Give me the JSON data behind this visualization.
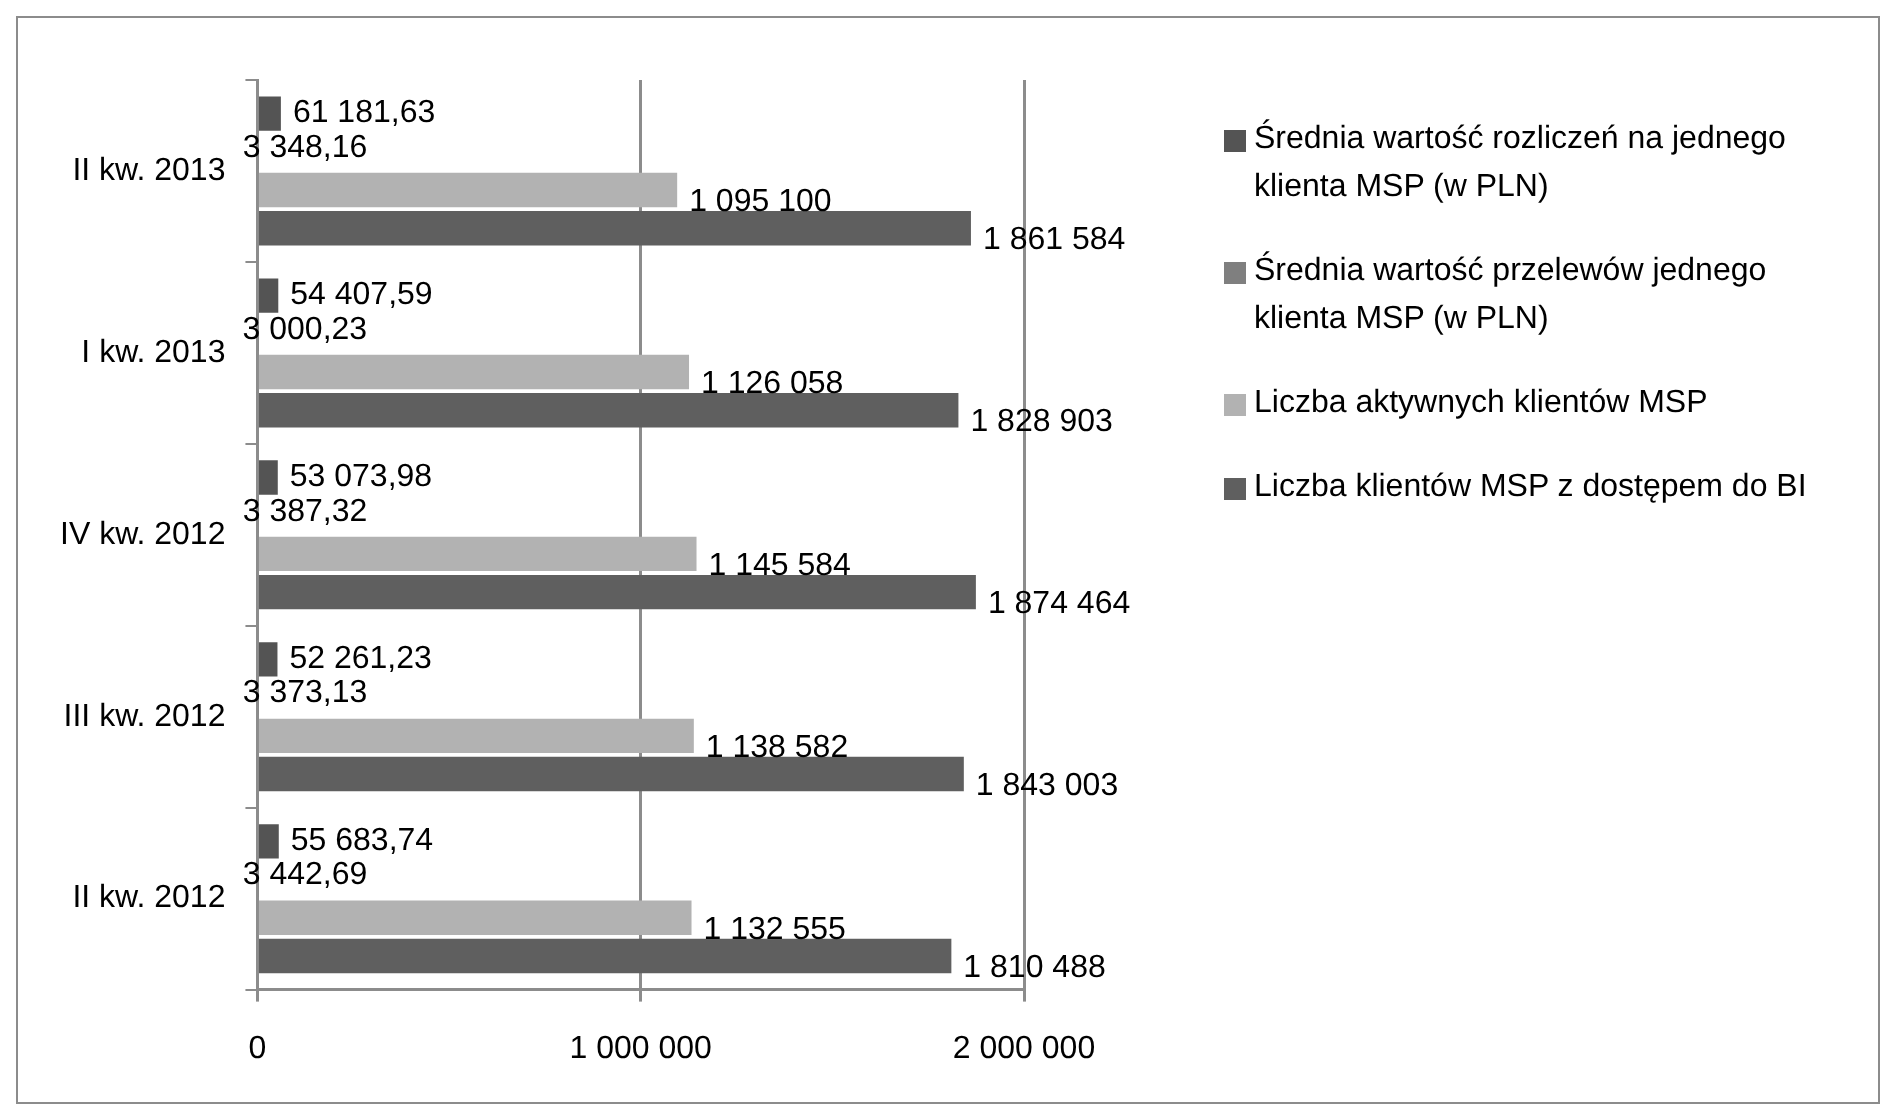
{
  "chart_data": {
    "type": "bar",
    "orientation": "horizontal",
    "categories": [
      "II kw. 2013",
      "I kw. 2013",
      "IV kw. 2012",
      "III kw. 2012",
      "II kw. 2012"
    ],
    "series": [
      {
        "name": "Średnia wartość rozliczeń na jednego klienta MSP (w PLN)",
        "color": "#545454",
        "values": [
          61181.63,
          54407.59,
          53073.98,
          52261.23,
          55683.74
        ],
        "value_labels": [
          "61 181,63",
          "54 407,59",
          "53 073,98",
          "52 261,23",
          "55 683,74"
        ]
      },
      {
        "name": "Średnia wartość przelewów jednego klienta MSP (w PLN)",
        "color": "#7f7f7f",
        "values": [
          3348.16,
          3000.23,
          3387.32,
          3373.13,
          3442.69
        ],
        "value_labels": [
          "3 348,16",
          "3 000,23",
          "3 387,32",
          "3 373,13",
          "3 442,69"
        ]
      },
      {
        "name": "Liczba aktywnych klientów MSP",
        "color": "#b2b2b2",
        "values": [
          1095100,
          1126058,
          1145584,
          1138582,
          1132555
        ],
        "value_labels": [
          "1 095 100",
          "1 126 058",
          "1 145 584",
          "1 138 582",
          "1 132 555"
        ]
      },
      {
        "name": "Liczba klientów MSP z dostępem do BI",
        "color": "#5f5f5f",
        "values": [
          1861584,
          1828903,
          1874464,
          1843003,
          1810488
        ],
        "value_labels": [
          "1 861 584",
          "1 828 903",
          "1 874 464",
          "1 843 003",
          "1 810 488"
        ]
      }
    ],
    "xlim": [
      0,
      2000000
    ],
    "xticks": [
      {
        "value": 0,
        "label": "0"
      },
      {
        "value": 1000000,
        "label": "1 000 000"
      },
      {
        "value": 2000000,
        "label": "2 000 000"
      }
    ],
    "grid": "x",
    "legend": "right"
  }
}
